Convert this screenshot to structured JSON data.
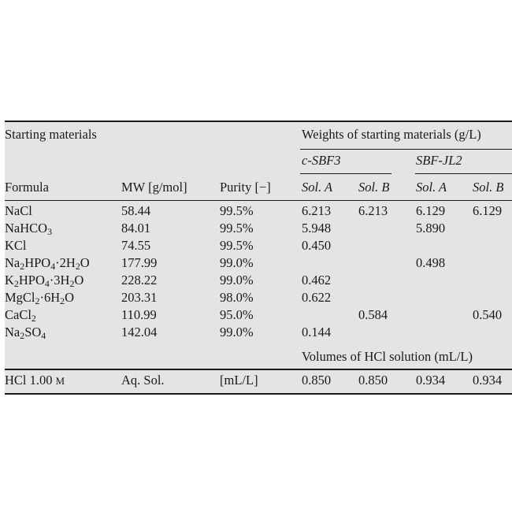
{
  "headers": {
    "starting_materials": "Starting materials",
    "weights": "Weights of starting materials (g/L)",
    "group1": "c-SBF3",
    "group2": "SBF-JL2",
    "formula": "Formula",
    "mw": "MW [g/mol]",
    "purity": "Purity [−]",
    "g1_solA": "Sol. A",
    "g1_solB": "Sol. B",
    "g2_solA": "Sol. A",
    "g2_solB": "Sol. B"
  },
  "rows": [
    {
      "formula_parts": [
        [
          "NaCl",
          ""
        ]
      ],
      "formula": "NaCl",
      "mw": "58.44",
      "purity": "99.5%",
      "g1a": "6.213",
      "g1b": "6.213",
      "g2a": "6.129",
      "g2b": "6.129"
    },
    {
      "formula_parts": [
        [
          "NaHCO",
          ""
        ],
        [
          "3",
          "sub"
        ]
      ],
      "formula": "NaHCO3",
      "mw": "84.01",
      "purity": "99.5%",
      "g1a": "5.948",
      "g1b": "",
      "g2a": "5.890",
      "g2b": ""
    },
    {
      "formula_parts": [
        [
          "KCl",
          ""
        ]
      ],
      "formula": "KCl",
      "mw": "74.55",
      "purity": "99.5%",
      "g1a": "0.450",
      "g1b": "",
      "g2a": "",
      "g2b": ""
    },
    {
      "formula_parts": [
        [
          "Na",
          ""
        ],
        [
          "2",
          "sub"
        ],
        [
          "HPO",
          ""
        ],
        [
          "4",
          "sub"
        ],
        [
          "·2H",
          ""
        ],
        [
          "2",
          "sub"
        ],
        [
          "O",
          ""
        ]
      ],
      "formula": "Na2HPO4·2H2O",
      "mw": "177.99",
      "purity": "99.0%",
      "g1a": "",
      "g1b": "",
      "g2a": "0.498",
      "g2b": ""
    },
    {
      "formula_parts": [
        [
          "K",
          ""
        ],
        [
          "2",
          "sub"
        ],
        [
          "HPO",
          ""
        ],
        [
          "4",
          "sub"
        ],
        [
          "·3H",
          ""
        ],
        [
          "2",
          "sub"
        ],
        [
          "O",
          ""
        ]
      ],
      "formula": "K2HPO4·3H2O",
      "mw": "228.22",
      "purity": "99.0%",
      "g1a": "0.462",
      "g1b": "",
      "g2a": "",
      "g2b": ""
    },
    {
      "formula_parts": [
        [
          "MgCl",
          ""
        ],
        [
          "2",
          "sub"
        ],
        [
          "·6H",
          ""
        ],
        [
          "2",
          "sub"
        ],
        [
          "O",
          ""
        ]
      ],
      "formula": "MgCl2·6H2O",
      "mw": "203.31",
      "purity": "98.0%",
      "g1a": "0.622",
      "g1b": "",
      "g2a": "",
      "g2b": ""
    },
    {
      "formula_parts": [
        [
          "CaCl",
          ""
        ],
        [
          "2",
          "sub"
        ]
      ],
      "formula": "CaCl2",
      "mw": "110.99",
      "purity": "95.0%",
      "g1a": "",
      "g1b": "0.584",
      "g2a": "",
      "g2b": "0.540"
    },
    {
      "formula_parts": [
        [
          "Na",
          ""
        ],
        [
          "2",
          "sub"
        ],
        [
          "SO",
          ""
        ],
        [
          "4",
          "sub"
        ]
      ],
      "formula": "Na2SO4",
      "mw": "142.04",
      "purity": "99.0%",
      "g1a": "0.144",
      "g1b": "",
      "g2a": "",
      "g2b": ""
    }
  ],
  "volumes_header": "Volumes of HCl solution (mL/L)",
  "hcl_row": {
    "formula_main": "HCl 1.00 ",
    "formula_unit": "M",
    "mw": "Aq. Sol.",
    "purity": "[mL/L]",
    "g1a": "0.850",
    "g1b": "0.850",
    "g2a": "0.934",
    "g2b": "0.934"
  }
}
